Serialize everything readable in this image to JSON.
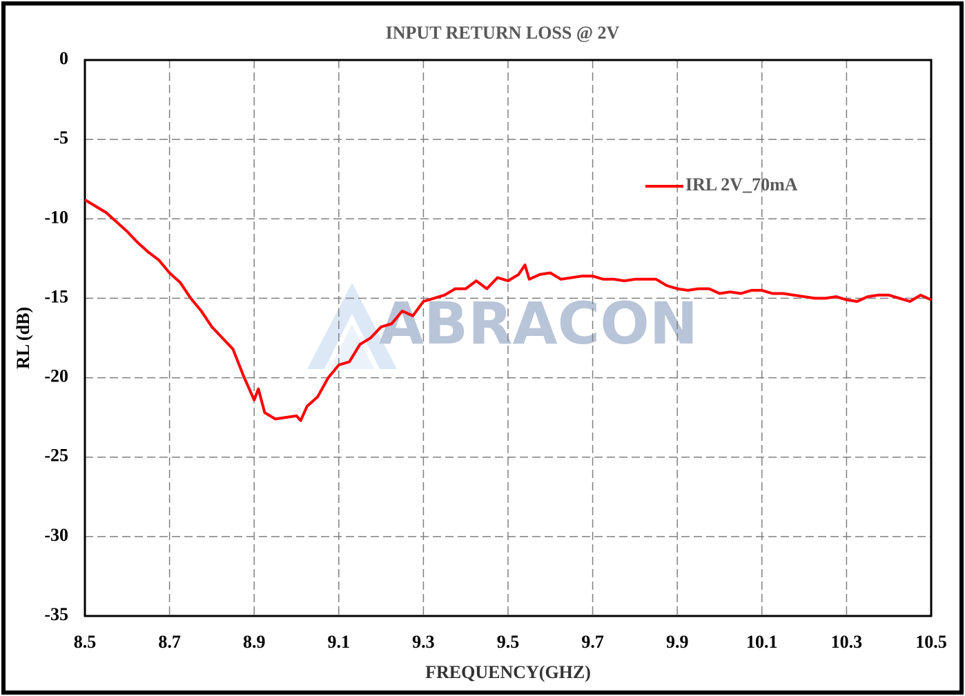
{
  "chart_data": {
    "type": "line",
    "title": "INPUT RETURN LOSS @ 2V",
    "x_label": "FREQUENCY(GHZ)",
    "y_label": "RL (dB)",
    "watermark": "ABRACON",
    "x": [
      8.5,
      8.525,
      8.55,
      8.575,
      8.6,
      8.625,
      8.65,
      8.675,
      8.7,
      8.725,
      8.75,
      8.775,
      8.8,
      8.825,
      8.85,
      8.875,
      8.9,
      8.91,
      8.925,
      8.95,
      8.975,
      9.0,
      9.01,
      9.025,
      9.05,
      9.075,
      9.1,
      9.125,
      9.15,
      9.175,
      9.2,
      9.225,
      9.25,
      9.275,
      9.3,
      9.325,
      9.35,
      9.375,
      9.4,
      9.425,
      9.45,
      9.475,
      9.5,
      9.525,
      9.54,
      9.55,
      9.575,
      9.6,
      9.625,
      9.65,
      9.675,
      9.7,
      9.725,
      9.75,
      9.775,
      9.8,
      9.825,
      9.85,
      9.875,
      9.9,
      9.925,
      9.95,
      9.975,
      10.0,
      10.025,
      10.05,
      10.075,
      10.1,
      10.125,
      10.15,
      10.175,
      10.2,
      10.225,
      10.25,
      10.275,
      10.3,
      10.325,
      10.35,
      10.375,
      10.4,
      10.425,
      10.45,
      10.475,
      10.5
    ],
    "series": [
      {
        "name": "IRL 2V_70mA",
        "color": "#ff0000",
        "values": [
          -8.8,
          -9.2,
          -9.6,
          -10.2,
          -10.8,
          -11.5,
          -12.1,
          -12.6,
          -13.4,
          -14.0,
          -15.0,
          -15.8,
          -16.8,
          -17.5,
          -18.2,
          -19.9,
          -21.4,
          -20.7,
          -22.2,
          -22.6,
          -22.5,
          -22.4,
          -22.7,
          -21.8,
          -21.2,
          -20.0,
          -19.2,
          -19.0,
          -17.9,
          -17.5,
          -16.8,
          -16.6,
          -15.8,
          -16.1,
          -15.2,
          -15.0,
          -14.8,
          -14.4,
          -14.4,
          -13.9,
          -14.4,
          -13.7,
          -13.9,
          -13.5,
          -12.9,
          -13.8,
          -13.5,
          -13.4,
          -13.8,
          -13.7,
          -13.6,
          -13.6,
          -13.8,
          -13.8,
          -13.9,
          -13.8,
          -13.8,
          -13.8,
          -14.2,
          -14.4,
          -14.5,
          -14.4,
          -14.4,
          -14.7,
          -14.6,
          -14.7,
          -14.5,
          -14.5,
          -14.7,
          -14.7,
          -14.8,
          -14.9,
          -15.0,
          -15.0,
          -14.9,
          -15.1,
          -15.2,
          -14.9,
          -14.8,
          -14.8,
          -15.0,
          -15.2,
          -14.8,
          -15.1
        ]
      }
    ],
    "xlim": [
      8.5,
      10.5
    ],
    "xticks": [
      8.5,
      8.7,
      8.9,
      9.1,
      9.3,
      9.5,
      9.7,
      9.9,
      10.1,
      10.3,
      10.5
    ],
    "ylim": [
      -35,
      0
    ],
    "yticks": [
      0,
      -5,
      -10,
      -15,
      -20,
      -25,
      -30,
      -35
    ],
    "grid": true,
    "legend": "upper right"
  }
}
